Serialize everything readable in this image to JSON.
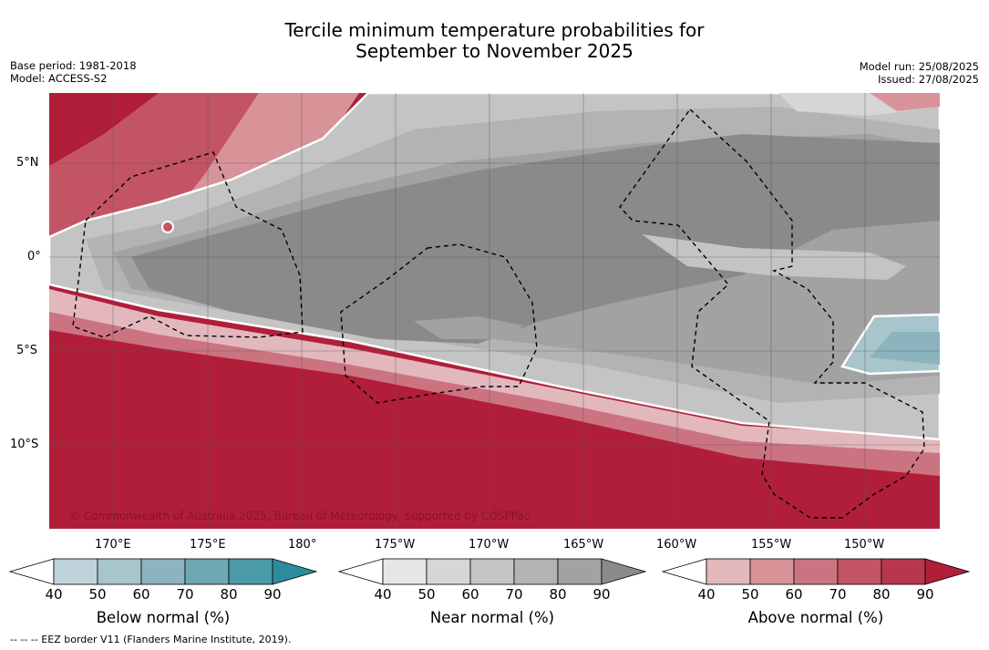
{
  "title_line1": "Tercile minimum temperature probabilities for",
  "title_line2": "September to November 2025",
  "base_period": "Base period: 1981-2018",
  "model": "Model: ACCESS-S2",
  "model_run": "Model run: 25/08/2025",
  "issued": "Issued: 27/08/2025",
  "copyright": "© Commonwealth of Australia 2025, Bureau of Meteorology, supported by COSPPac",
  "lat_labels": [
    "5°N",
    "0°",
    "5°S",
    "10°S"
  ],
  "lon_labels": [
    "170°E",
    "175°E",
    "180°",
    "175°W",
    "170°W",
    "165°W",
    "160°W",
    "155°W",
    "150°W"
  ],
  "colorbars": [
    {
      "title": "Below normal (%)",
      "ticks": [
        "40",
        "50",
        "60",
        "70",
        "80",
        "90"
      ],
      "colors": [
        "#bfd3da",
        "#a7c5cb",
        "#8bb4be",
        "#6da8b3",
        "#4a9aa9",
        "#2c8c9e"
      ]
    },
    {
      "title": "Near normal (%)",
      "ticks": [
        "40",
        "50",
        "60",
        "70",
        "80",
        "90"
      ],
      "colors": [
        "#e6e6e6",
        "#d6d6d6",
        "#c4c4c4",
        "#b3b3b3",
        "#a2a2a2",
        "#8a8a8a"
      ]
    },
    {
      "title": "Above normal (%)",
      "ticks": [
        "40",
        "50",
        "60",
        "70",
        "80",
        "90"
      ],
      "colors": [
        "#e2b8bd",
        "#d89399",
        "#cc7381",
        "#c35465",
        "#b8374c",
        "#b11e3a"
      ]
    }
  ],
  "footnote": "--  --  -- EEZ border V11 (Flanders Marine Institute, 2019)."
}
